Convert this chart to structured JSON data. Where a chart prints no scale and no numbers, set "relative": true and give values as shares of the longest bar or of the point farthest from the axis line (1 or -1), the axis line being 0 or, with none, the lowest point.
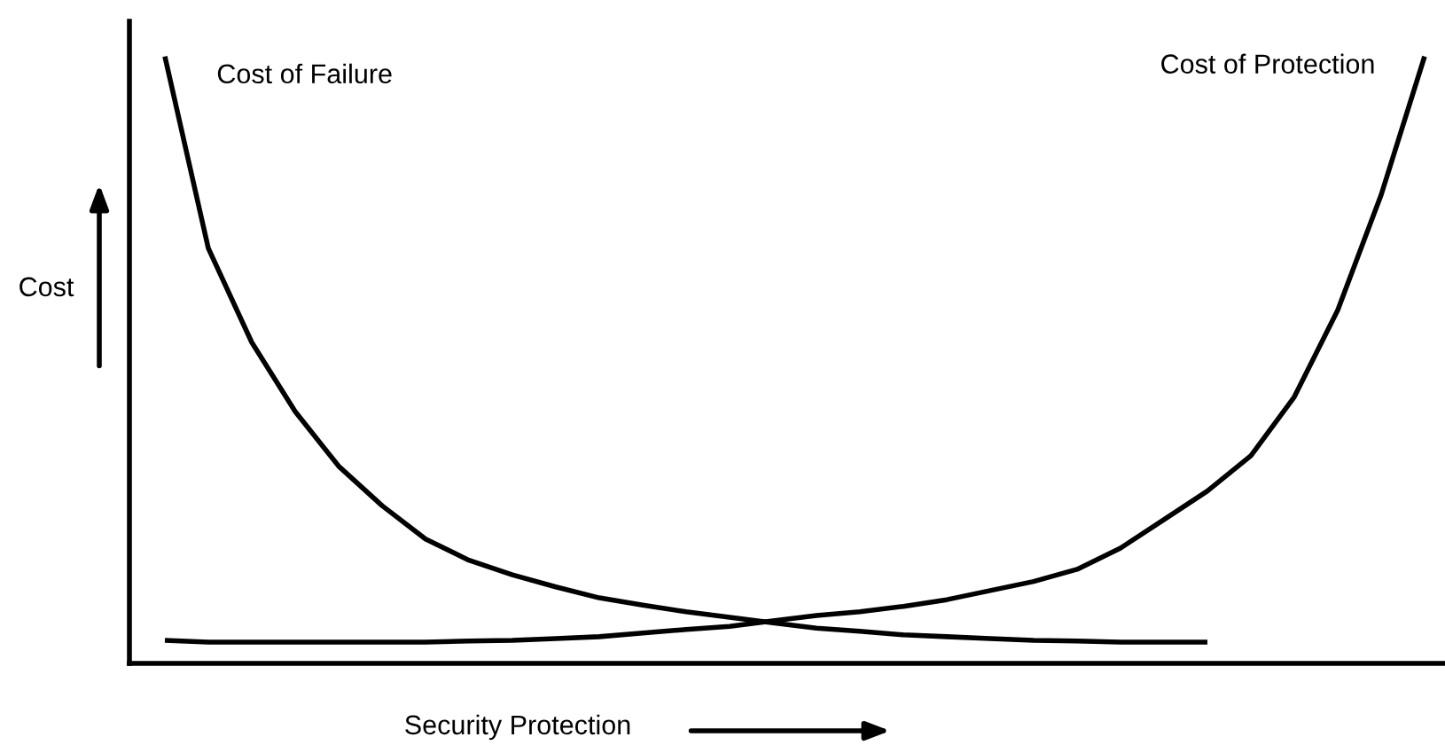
{
  "chart_data": {
    "type": "line",
    "relative": true,
    "xlabel": "Security Protection",
    "ylabel": "Cost",
    "legend": false,
    "marker": "none",
    "line_style": "solid",
    "categories": [
      null,
      null,
      null,
      null,
      null,
      null,
      null,
      null,
      null,
      null,
      null,
      null,
      null,
      null,
      null,
      null,
      null,
      null,
      null,
      null,
      null,
      null,
      null,
      null,
      null,
      null,
      null,
      null,
      null,
      null
    ],
    "series": [
      {
        "name": "Cost of Failure",
        "color": "#000000",
        "values": [
          1.0,
          0.684,
          0.529,
          0.415,
          0.325,
          0.26,
          0.205,
          0.17,
          0.146,
          0.126,
          0.108,
          0.096,
          0.085,
          0.076,
          0.067,
          0.058,
          0.053,
          0.047,
          0.044,
          0.041,
          0.038,
          0.037,
          0.035,
          0.035,
          0.035,
          null,
          null,
          null,
          null,
          null
        ]
      },
      {
        "name": "Cost of Protection",
        "color": "#000000",
        "values": [
          0.038,
          0.035,
          0.035,
          0.035,
          0.035,
          0.035,
          0.035,
          0.037,
          0.038,
          0.041,
          0.044,
          0.05,
          0.056,
          0.061,
          0.07,
          0.079,
          0.085,
          0.094,
          0.105,
          0.12,
          0.135,
          0.155,
          0.19,
          0.237,
          0.284,
          0.342,
          0.439,
          0.582,
          0.772,
          1.0
        ]
      }
    ]
  }
}
